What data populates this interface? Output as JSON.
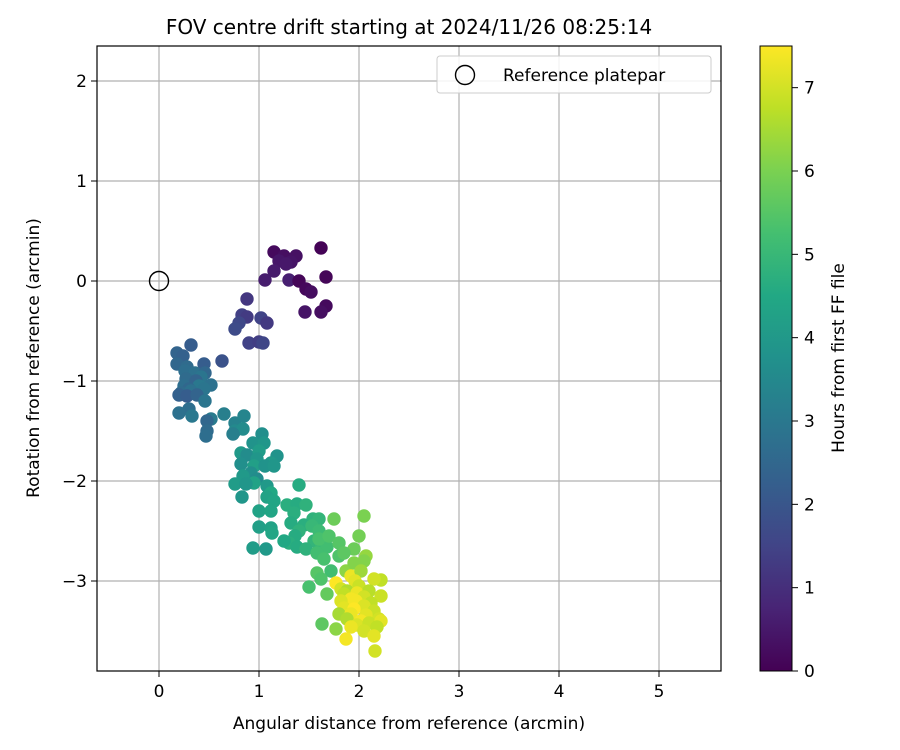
{
  "chart_data": {
    "type": "scatter",
    "title": "FOV centre drift starting at 2024/11/26 08:25:14",
    "xlabel": "Angular distance from reference (arcmin)",
    "ylabel": "Rotation from reference (arcmin)",
    "xlim": [
      -0.62,
      5.62
    ],
    "ylim": [
      -3.9,
      2.35
    ],
    "xticks": [
      0,
      1,
      2,
      3,
      4,
      5
    ],
    "xtick_labels": [
      "0",
      "1",
      "2",
      "3",
      "4",
      "5"
    ],
    "yticks": [
      2,
      1,
      0,
      -1,
      -2,
      -3
    ],
    "ytick_labels": [
      "2",
      "1",
      "0",
      "−1",
      "−2",
      "−3"
    ],
    "grid": true,
    "legend": {
      "position": "top-right",
      "entries": [
        {
          "label": "Reference platepar",
          "marker": "open-circle"
        }
      ]
    },
    "reference_point": {
      "x": 0,
      "y": 0
    },
    "colorbar": {
      "label": "Hours from first FF file",
      "colormap": "viridis",
      "range": [
        0,
        7.5
      ],
      "ticks": [
        0,
        1,
        2,
        3,
        4,
        5,
        6,
        7
      ],
      "tick_labels": [
        "0",
        "1",
        "2",
        "3",
        "4",
        "5",
        "6",
        "7"
      ]
    },
    "points": [
      [
        1.62,
        0.33,
        0.05
      ],
      [
        1.67,
        0.04,
        0.1
      ],
      [
        1.15,
        0.29,
        0.2
      ],
      [
        1.25,
        0.25,
        0.3
      ],
      [
        1.37,
        0.25,
        0.35
      ],
      [
        1.32,
        0.19,
        0.4
      ],
      [
        1.2,
        0.2,
        0.45
      ],
      [
        1.27,
        0.17,
        0.5
      ],
      [
        1.15,
        0.1,
        0.55
      ],
      [
        1.06,
        0.01,
        0.6
      ],
      [
        1.3,
        0.01,
        0.65
      ],
      [
        1.4,
        0.0,
        0.1
      ],
      [
        1.47,
        -0.08,
        0.15
      ],
      [
        1.52,
        -0.11,
        0.25
      ],
      [
        1.67,
        -0.25,
        0.2
      ],
      [
        1.46,
        -0.31,
        0.4
      ],
      [
        1.62,
        -0.31,
        0.3
      ],
      [
        0.88,
        -0.18,
        1.2
      ],
      [
        0.83,
        -0.34,
        1.4
      ],
      [
        0.88,
        -0.36,
        1.3
      ],
      [
        1.02,
        -0.37,
        1.5
      ],
      [
        1.08,
        -0.42,
        1.25
      ],
      [
        0.8,
        -0.42,
        1.6
      ],
      [
        0.76,
        -0.48,
        1.7
      ],
      [
        0.9,
        -0.62,
        1.45
      ],
      [
        1.0,
        -0.61,
        1.35
      ],
      [
        1.04,
        -0.62,
        1.55
      ],
      [
        0.63,
        -0.8,
        1.9
      ],
      [
        0.32,
        -0.64,
        2.2
      ],
      [
        0.18,
        -0.72,
        2.4
      ],
      [
        0.24,
        -0.75,
        2.3
      ],
      [
        0.18,
        -0.83,
        2.5
      ],
      [
        0.28,
        -0.86,
        2.6
      ],
      [
        0.45,
        -0.83,
        2.2
      ],
      [
        0.26,
        -0.9,
        2.7
      ],
      [
        0.36,
        -0.92,
        2.8
      ],
      [
        0.46,
        -0.92,
        2.5
      ],
      [
        0.42,
        -0.96,
        2.9
      ],
      [
        0.27,
        -0.98,
        2.6
      ],
      [
        0.37,
        -1.0,
        2.4
      ],
      [
        0.52,
        -1.04,
        2.8
      ],
      [
        0.25,
        -1.05,
        2.7
      ],
      [
        0.4,
        -1.05,
        3.0
      ],
      [
        0.3,
        -1.08,
        2.5
      ],
      [
        0.45,
        -1.08,
        2.9
      ],
      [
        0.22,
        -1.12,
        2.6
      ],
      [
        0.32,
        -1.1,
        2.8
      ],
      [
        0.2,
        -1.14,
        2.3
      ],
      [
        0.28,
        -1.15,
        2.2
      ],
      [
        0.38,
        -1.14,
        2.4
      ],
      [
        0.46,
        -1.2,
        2.9
      ],
      [
        0.3,
        -1.28,
        2.7
      ],
      [
        0.2,
        -1.32,
        2.8
      ],
      [
        0.52,
        -1.38,
        3.1
      ],
      [
        0.48,
        -1.4,
        2.5
      ],
      [
        0.65,
        -1.33,
        3.2
      ],
      [
        0.33,
        -1.35,
        3.0
      ],
      [
        0.48,
        -1.5,
        2.6
      ],
      [
        0.47,
        -1.55,
        2.7
      ],
      [
        0.76,
        -1.42,
        3.3
      ],
      [
        0.85,
        -1.35,
        3.4
      ],
      [
        0.76,
        -1.5,
        3.5
      ],
      [
        0.84,
        -1.48,
        3.6
      ],
      [
        0.74,
        -1.53,
        3.2
      ],
      [
        1.03,
        -1.53,
        3.7
      ],
      [
        0.94,
        -1.62,
        3.8
      ],
      [
        1.05,
        -1.62,
        3.9
      ],
      [
        0.82,
        -1.72,
        4.0
      ],
      [
        0.88,
        -1.74,
        3.6
      ],
      [
        1.0,
        -1.7,
        4.1
      ],
      [
        1.18,
        -1.75,
        3.8
      ],
      [
        0.98,
        -1.78,
        3.9
      ],
      [
        1.12,
        -1.82,
        4.0
      ],
      [
        0.82,
        -1.83,
        3.7
      ],
      [
        0.95,
        -1.85,
        4.2
      ],
      [
        1.06,
        -1.85,
        3.8
      ],
      [
        1.15,
        -1.85,
        3.9
      ],
      [
        0.92,
        -1.92,
        3.7
      ],
      [
        0.84,
        -1.95,
        4.0
      ],
      [
        0.98,
        -1.98,
        3.6
      ],
      [
        0.76,
        -2.03,
        4.1
      ],
      [
        0.95,
        -2.02,
        4.3
      ],
      [
        0.87,
        -2.03,
        3.9
      ],
      [
        1.08,
        -2.05,
        4.0
      ],
      [
        1.12,
        -2.12,
        4.5
      ],
      [
        0.83,
        -2.16,
        3.9
      ],
      [
        1.08,
        -2.16,
        4.3
      ],
      [
        1.15,
        -2.2,
        4.4
      ],
      [
        1.4,
        -2.04,
        4.6
      ],
      [
        1.28,
        -2.24,
        4.7
      ],
      [
        1.38,
        -2.23,
        4.6
      ],
      [
        1.47,
        -2.24,
        4.8
      ],
      [
        1.0,
        -2.3,
        4.3
      ],
      [
        1.12,
        -2.3,
        4.4
      ],
      [
        1.35,
        -2.32,
        4.7
      ],
      [
        1.54,
        -2.38,
        4.8
      ],
      [
        1.6,
        -2.38,
        4.9
      ],
      [
        1.32,
        -2.42,
        4.6
      ],
      [
        1.45,
        -2.44,
        4.7
      ],
      [
        1.0,
        -2.46,
        4.2
      ],
      [
        1.12,
        -2.47,
        4.3
      ],
      [
        1.53,
        -2.45,
        5.0
      ],
      [
        1.4,
        -2.5,
        4.8
      ],
      [
        1.6,
        -2.5,
        5.1
      ],
      [
        1.13,
        -2.52,
        4.4
      ],
      [
        1.36,
        -2.55,
        4.6
      ],
      [
        1.55,
        -2.6,
        4.9
      ],
      [
        1.62,
        -2.62,
        5.0
      ],
      [
        1.3,
        -2.62,
        4.7
      ],
      [
        1.25,
        -2.6,
        4.5
      ],
      [
        1.68,
        -2.66,
        5.2
      ],
      [
        1.38,
        -2.66,
        4.6
      ],
      [
        0.94,
        -2.67,
        4.1
      ],
      [
        1.07,
        -2.68,
        4.0
      ],
      [
        1.47,
        -2.68,
        4.8
      ],
      [
        1.6,
        -2.58,
        5.3
      ],
      [
        1.75,
        -2.38,
        5.8
      ],
      [
        1.7,
        -2.55,
        5.4
      ],
      [
        1.8,
        -2.62,
        5.5
      ],
      [
        1.58,
        -2.72,
        5.2
      ],
      [
        1.65,
        -2.78,
        5.3
      ],
      [
        1.8,
        -2.75,
        5.4
      ],
      [
        2.05,
        -2.35,
        6.0
      ],
      [
        2.0,
        -2.55,
        5.9
      ],
      [
        1.95,
        -2.68,
        5.8
      ],
      [
        1.85,
        -2.72,
        5.6
      ],
      [
        2.07,
        -2.75,
        6.3
      ],
      [
        2.05,
        -2.8,
        6.1
      ],
      [
        1.72,
        -2.9,
        5.2
      ],
      [
        1.58,
        -2.92,
        5.5
      ],
      [
        1.87,
        -2.9,
        6.2
      ],
      [
        1.95,
        -2.82,
        6.1
      ],
      [
        1.62,
        -2.98,
        5.4
      ],
      [
        1.5,
        -3.06,
        5.3
      ],
      [
        1.92,
        -2.95,
        7.3
      ],
      [
        2.02,
        -2.9,
        6.4
      ],
      [
        2.22,
        -2.99,
        6.8
      ],
      [
        2.15,
        -2.98,
        7.0
      ],
      [
        1.96,
        -3.0,
        7.2
      ],
      [
        1.77,
        -3.02,
        7.5
      ],
      [
        1.82,
        -3.08,
        7.0
      ],
      [
        1.88,
        -3.1,
        6.6
      ],
      [
        2.0,
        -3.05,
        6.9
      ],
      [
        1.98,
        -3.12,
        7.3
      ],
      [
        1.68,
        -3.13,
        5.7
      ],
      [
        1.85,
        -3.13,
        6.8
      ],
      [
        2.1,
        -3.1,
        6.7
      ],
      [
        2.22,
        -3.15,
        6.9
      ],
      [
        1.92,
        -3.18,
        7.4
      ],
      [
        2.05,
        -3.16,
        7.0
      ],
      [
        1.82,
        -3.2,
        7.1
      ],
      [
        1.97,
        -3.2,
        7.4
      ],
      [
        2.12,
        -3.22,
        6.8
      ],
      [
        1.85,
        -3.27,
        7.2
      ],
      [
        2.05,
        -3.25,
        7.1
      ],
      [
        1.95,
        -3.28,
        7.5
      ],
      [
        2.15,
        -3.3,
        6.9
      ],
      [
        1.8,
        -3.33,
        6.5
      ],
      [
        1.92,
        -3.33,
        7.3
      ],
      [
        2.07,
        -3.34,
        7.2
      ],
      [
        2.2,
        -3.38,
        7.0
      ],
      [
        1.88,
        -3.38,
        6.6
      ],
      [
        2.02,
        -3.4,
        7.4
      ],
      [
        1.98,
        -3.44,
        7.1
      ],
      [
        2.1,
        -3.42,
        6.9
      ],
      [
        2.22,
        -3.4,
        7.2
      ],
      [
        1.92,
        -3.46,
        7.3
      ],
      [
        2.18,
        -3.46,
        6.8
      ],
      [
        2.05,
        -3.5,
        7.0
      ],
      [
        2.15,
        -3.55,
        7.2
      ],
      [
        1.63,
        -3.43,
        5.6
      ],
      [
        1.77,
        -3.48,
        6.2
      ],
      [
        1.87,
        -3.58,
        7.4
      ],
      [
        2.16,
        -3.7,
        7.0
      ]
    ]
  }
}
